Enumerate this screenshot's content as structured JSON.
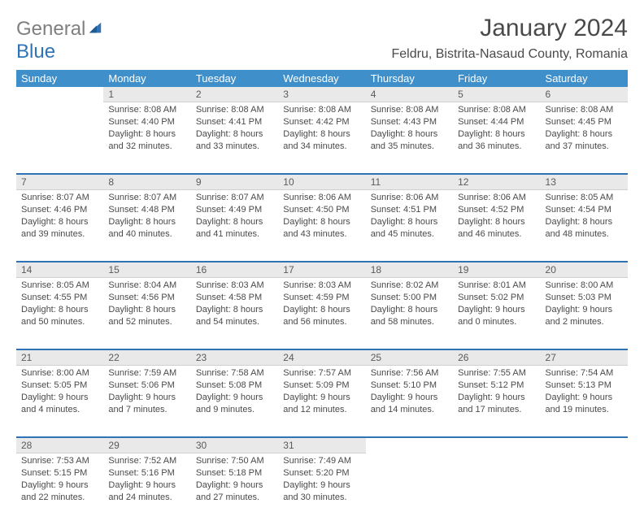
{
  "logo": {
    "word1": "General",
    "word2": "Blue"
  },
  "title": "January 2024",
  "location": "Feldru, Bistrita-Nasaud County, Romania",
  "columns": [
    "Sunday",
    "Monday",
    "Tuesday",
    "Wednesday",
    "Thursday",
    "Friday",
    "Saturday"
  ],
  "colors": {
    "header_bg": "#3f8fcb",
    "header_fg": "#ffffff",
    "rule": "#2f73b5",
    "daynum_bg": "#e9e9e9",
    "text": "#4a4a4a",
    "logo_gray": "#7f7f7f",
    "logo_blue": "#2f73b5"
  },
  "typography": {
    "title_fontsize": 30,
    "location_fontsize": 16,
    "th_fontsize": 13,
    "daynum_fontsize": 12,
    "body_fontsize": 11
  },
  "weeks": [
    [
      {
        "n": "",
        "sunrise": "",
        "sunset": "",
        "daylight1": "",
        "daylight2": ""
      },
      {
        "n": "1",
        "sunrise": "Sunrise: 8:08 AM",
        "sunset": "Sunset: 4:40 PM",
        "daylight1": "Daylight: 8 hours",
        "daylight2": "and 32 minutes."
      },
      {
        "n": "2",
        "sunrise": "Sunrise: 8:08 AM",
        "sunset": "Sunset: 4:41 PM",
        "daylight1": "Daylight: 8 hours",
        "daylight2": "and 33 minutes."
      },
      {
        "n": "3",
        "sunrise": "Sunrise: 8:08 AM",
        "sunset": "Sunset: 4:42 PM",
        "daylight1": "Daylight: 8 hours",
        "daylight2": "and 34 minutes."
      },
      {
        "n": "4",
        "sunrise": "Sunrise: 8:08 AM",
        "sunset": "Sunset: 4:43 PM",
        "daylight1": "Daylight: 8 hours",
        "daylight2": "and 35 minutes."
      },
      {
        "n": "5",
        "sunrise": "Sunrise: 8:08 AM",
        "sunset": "Sunset: 4:44 PM",
        "daylight1": "Daylight: 8 hours",
        "daylight2": "and 36 minutes."
      },
      {
        "n": "6",
        "sunrise": "Sunrise: 8:08 AM",
        "sunset": "Sunset: 4:45 PM",
        "daylight1": "Daylight: 8 hours",
        "daylight2": "and 37 minutes."
      }
    ],
    [
      {
        "n": "7",
        "sunrise": "Sunrise: 8:07 AM",
        "sunset": "Sunset: 4:46 PM",
        "daylight1": "Daylight: 8 hours",
        "daylight2": "and 39 minutes."
      },
      {
        "n": "8",
        "sunrise": "Sunrise: 8:07 AM",
        "sunset": "Sunset: 4:48 PM",
        "daylight1": "Daylight: 8 hours",
        "daylight2": "and 40 minutes."
      },
      {
        "n": "9",
        "sunrise": "Sunrise: 8:07 AM",
        "sunset": "Sunset: 4:49 PM",
        "daylight1": "Daylight: 8 hours",
        "daylight2": "and 41 minutes."
      },
      {
        "n": "10",
        "sunrise": "Sunrise: 8:06 AM",
        "sunset": "Sunset: 4:50 PM",
        "daylight1": "Daylight: 8 hours",
        "daylight2": "and 43 minutes."
      },
      {
        "n": "11",
        "sunrise": "Sunrise: 8:06 AM",
        "sunset": "Sunset: 4:51 PM",
        "daylight1": "Daylight: 8 hours",
        "daylight2": "and 45 minutes."
      },
      {
        "n": "12",
        "sunrise": "Sunrise: 8:06 AM",
        "sunset": "Sunset: 4:52 PM",
        "daylight1": "Daylight: 8 hours",
        "daylight2": "and 46 minutes."
      },
      {
        "n": "13",
        "sunrise": "Sunrise: 8:05 AM",
        "sunset": "Sunset: 4:54 PM",
        "daylight1": "Daylight: 8 hours",
        "daylight2": "and 48 minutes."
      }
    ],
    [
      {
        "n": "14",
        "sunrise": "Sunrise: 8:05 AM",
        "sunset": "Sunset: 4:55 PM",
        "daylight1": "Daylight: 8 hours",
        "daylight2": "and 50 minutes."
      },
      {
        "n": "15",
        "sunrise": "Sunrise: 8:04 AM",
        "sunset": "Sunset: 4:56 PM",
        "daylight1": "Daylight: 8 hours",
        "daylight2": "and 52 minutes."
      },
      {
        "n": "16",
        "sunrise": "Sunrise: 8:03 AM",
        "sunset": "Sunset: 4:58 PM",
        "daylight1": "Daylight: 8 hours",
        "daylight2": "and 54 minutes."
      },
      {
        "n": "17",
        "sunrise": "Sunrise: 8:03 AM",
        "sunset": "Sunset: 4:59 PM",
        "daylight1": "Daylight: 8 hours",
        "daylight2": "and 56 minutes."
      },
      {
        "n": "18",
        "sunrise": "Sunrise: 8:02 AM",
        "sunset": "Sunset: 5:00 PM",
        "daylight1": "Daylight: 8 hours",
        "daylight2": "and 58 minutes."
      },
      {
        "n": "19",
        "sunrise": "Sunrise: 8:01 AM",
        "sunset": "Sunset: 5:02 PM",
        "daylight1": "Daylight: 9 hours",
        "daylight2": "and 0 minutes."
      },
      {
        "n": "20",
        "sunrise": "Sunrise: 8:00 AM",
        "sunset": "Sunset: 5:03 PM",
        "daylight1": "Daylight: 9 hours",
        "daylight2": "and 2 minutes."
      }
    ],
    [
      {
        "n": "21",
        "sunrise": "Sunrise: 8:00 AM",
        "sunset": "Sunset: 5:05 PM",
        "daylight1": "Daylight: 9 hours",
        "daylight2": "and 4 minutes."
      },
      {
        "n": "22",
        "sunrise": "Sunrise: 7:59 AM",
        "sunset": "Sunset: 5:06 PM",
        "daylight1": "Daylight: 9 hours",
        "daylight2": "and 7 minutes."
      },
      {
        "n": "23",
        "sunrise": "Sunrise: 7:58 AM",
        "sunset": "Sunset: 5:08 PM",
        "daylight1": "Daylight: 9 hours",
        "daylight2": "and 9 minutes."
      },
      {
        "n": "24",
        "sunrise": "Sunrise: 7:57 AM",
        "sunset": "Sunset: 5:09 PM",
        "daylight1": "Daylight: 9 hours",
        "daylight2": "and 12 minutes."
      },
      {
        "n": "25",
        "sunrise": "Sunrise: 7:56 AM",
        "sunset": "Sunset: 5:10 PM",
        "daylight1": "Daylight: 9 hours",
        "daylight2": "and 14 minutes."
      },
      {
        "n": "26",
        "sunrise": "Sunrise: 7:55 AM",
        "sunset": "Sunset: 5:12 PM",
        "daylight1": "Daylight: 9 hours",
        "daylight2": "and 17 minutes."
      },
      {
        "n": "27",
        "sunrise": "Sunrise: 7:54 AM",
        "sunset": "Sunset: 5:13 PM",
        "daylight1": "Daylight: 9 hours",
        "daylight2": "and 19 minutes."
      }
    ],
    [
      {
        "n": "28",
        "sunrise": "Sunrise: 7:53 AM",
        "sunset": "Sunset: 5:15 PM",
        "daylight1": "Daylight: 9 hours",
        "daylight2": "and 22 minutes."
      },
      {
        "n": "29",
        "sunrise": "Sunrise: 7:52 AM",
        "sunset": "Sunset: 5:16 PM",
        "daylight1": "Daylight: 9 hours",
        "daylight2": "and 24 minutes."
      },
      {
        "n": "30",
        "sunrise": "Sunrise: 7:50 AM",
        "sunset": "Sunset: 5:18 PM",
        "daylight1": "Daylight: 9 hours",
        "daylight2": "and 27 minutes."
      },
      {
        "n": "31",
        "sunrise": "Sunrise: 7:49 AM",
        "sunset": "Sunset: 5:20 PM",
        "daylight1": "Daylight: 9 hours",
        "daylight2": "and 30 minutes."
      },
      {
        "n": "",
        "sunrise": "",
        "sunset": "",
        "daylight1": "",
        "daylight2": ""
      },
      {
        "n": "",
        "sunrise": "",
        "sunset": "",
        "daylight1": "",
        "daylight2": ""
      },
      {
        "n": "",
        "sunrise": "",
        "sunset": "",
        "daylight1": "",
        "daylight2": ""
      }
    ]
  ]
}
